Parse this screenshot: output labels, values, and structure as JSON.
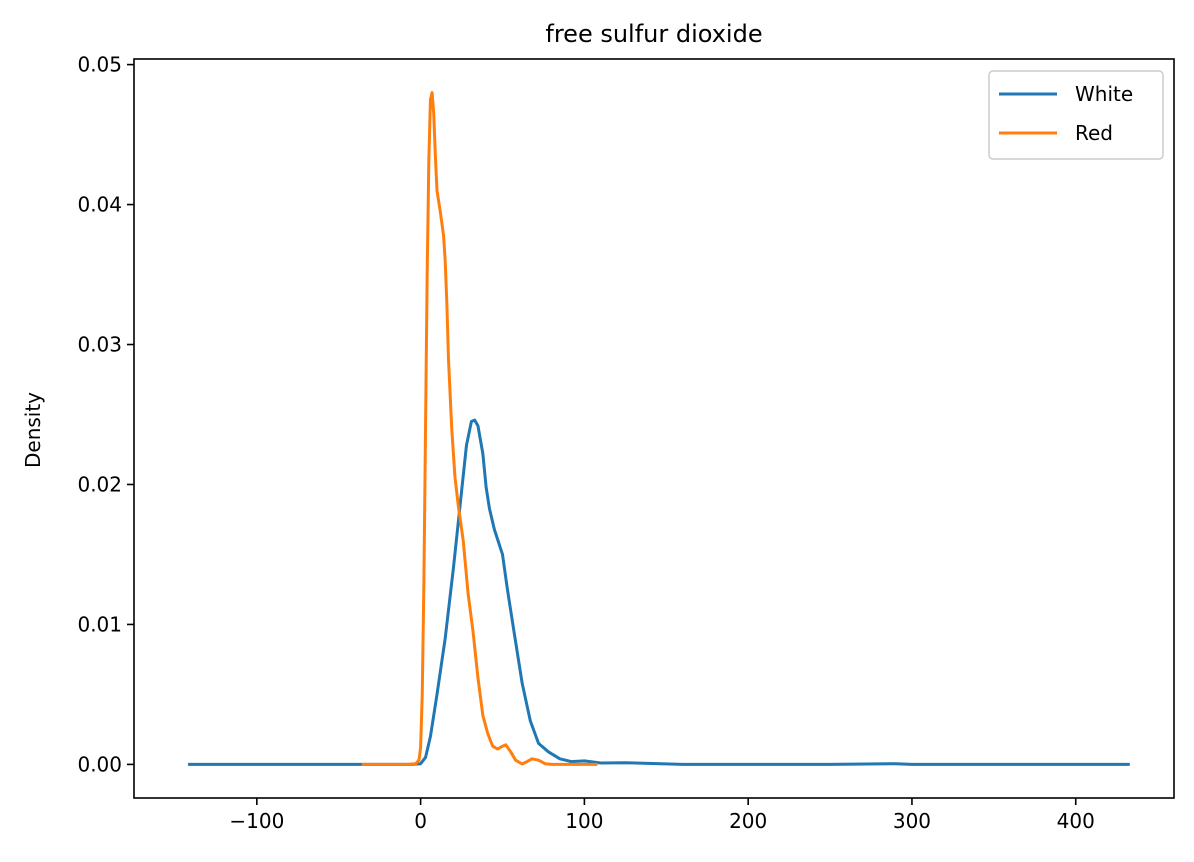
{
  "chart_data": {
    "type": "line",
    "title": "free sulfur dioxide",
    "xlabel": "",
    "ylabel": "Density",
    "xlim": [
      -175,
      460
    ],
    "ylim": [
      -0.0024,
      0.0504
    ],
    "xticks": [
      -100,
      0,
      100,
      200,
      300,
      400
    ],
    "xtick_labels": [
      "−100",
      "0",
      "100",
      "200",
      "300",
      "400"
    ],
    "yticks": [
      0.0,
      0.01,
      0.02,
      0.03,
      0.04,
      0.05
    ],
    "ytick_labels": [
      "0.00",
      "0.01",
      "0.02",
      "0.03",
      "0.04",
      "0.05"
    ],
    "grid": false,
    "legend_position": "top-right",
    "series": [
      {
        "name": "White",
        "color": "#1f77b4",
        "points": [
          [
            -142,
            0.0
          ],
          [
            -60,
            0.0
          ],
          [
            -20,
            0.0
          ],
          [
            -5,
            0.0
          ],
          [
            0,
            5e-05
          ],
          [
            3,
            0.0005
          ],
          [
            6,
            0.002
          ],
          [
            10,
            0.005
          ],
          [
            15,
            0.009
          ],
          [
            20,
            0.014
          ],
          [
            25,
            0.0195
          ],
          [
            28,
            0.0228
          ],
          [
            31,
            0.0245
          ],
          [
            33,
            0.0246
          ],
          [
            35,
            0.0242
          ],
          [
            38,
            0.0222
          ],
          [
            40,
            0.0198
          ],
          [
            42,
            0.0183
          ],
          [
            45,
            0.0168
          ],
          [
            50,
            0.015
          ],
          [
            53,
            0.0125
          ],
          [
            57,
            0.0095
          ],
          [
            62,
            0.0058
          ],
          [
            67,
            0.0031
          ],
          [
            72,
            0.0015
          ],
          [
            78,
            0.0009
          ],
          [
            85,
            0.0004
          ],
          [
            92,
            0.0002
          ],
          [
            100,
            0.00025
          ],
          [
            110,
            0.0001
          ],
          [
            125,
            0.00012
          ],
          [
            160,
            0.0
          ],
          [
            250,
            0.0
          ],
          [
            290,
            5e-05
          ],
          [
            300,
            0.0
          ],
          [
            360,
            0.0
          ],
          [
            433,
            0.0
          ]
        ]
      },
      {
        "name": "Red",
        "color": "#ff7f0e",
        "points": [
          [
            -36,
            0.0
          ],
          [
            -20,
            0.0
          ],
          [
            -8,
            0.0
          ],
          [
            -3,
            5e-05
          ],
          [
            -1,
            0.0003
          ],
          [
            0,
            0.0012
          ],
          [
            1,
            0.005
          ],
          [
            2,
            0.013
          ],
          [
            3,
            0.024
          ],
          [
            4,
            0.035
          ],
          [
            5,
            0.043
          ],
          [
            6,
            0.0475
          ],
          [
            7,
            0.048
          ],
          [
            8,
            0.0465
          ],
          [
            9,
            0.0435
          ],
          [
            10,
            0.041
          ],
          [
            12,
            0.0395
          ],
          [
            14,
            0.0378
          ],
          [
            15,
            0.036
          ],
          [
            16,
            0.033
          ],
          [
            17,
            0.029
          ],
          [
            19,
            0.024
          ],
          [
            21,
            0.0205
          ],
          [
            23,
            0.0185
          ],
          [
            26,
            0.016
          ],
          [
            29,
            0.0122
          ],
          [
            32,
            0.0095
          ],
          [
            35,
            0.0062
          ],
          [
            38,
            0.0035
          ],
          [
            41,
            0.0022
          ],
          [
            44,
            0.0013
          ],
          [
            47,
            0.0011
          ],
          [
            50,
            0.0013
          ],
          [
            52,
            0.0014
          ],
          [
            55,
            0.0009
          ],
          [
            58,
            0.0003
          ],
          [
            62,
            3e-05
          ],
          [
            65,
            0.0002
          ],
          [
            68,
            0.0004
          ],
          [
            72,
            0.0003
          ],
          [
            76,
            5e-05
          ],
          [
            80,
            0.0
          ],
          [
            95,
            0.0
          ],
          [
            108,
            0.0
          ]
        ]
      }
    ]
  }
}
